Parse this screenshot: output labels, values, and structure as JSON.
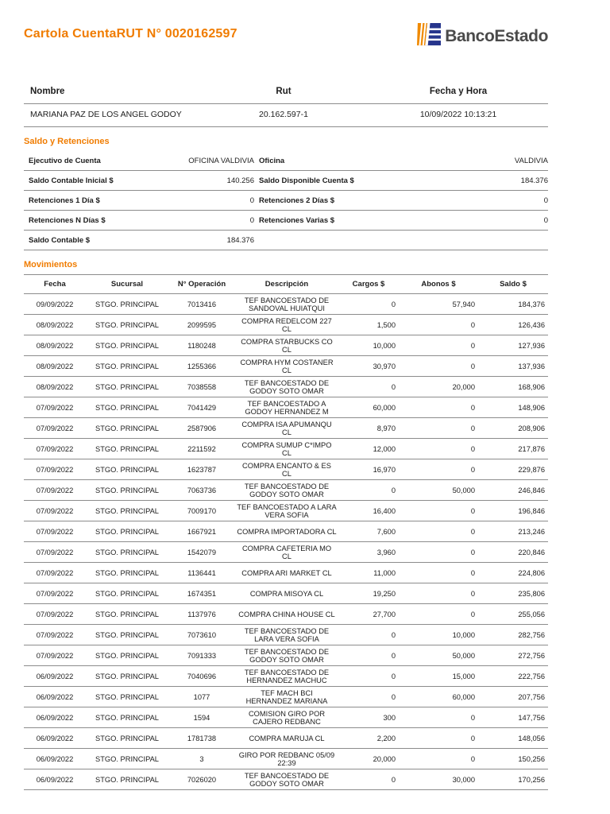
{
  "header": {
    "title": "Cartola CuentaRUT N° 0020162597",
    "brand": "BancoEstado",
    "brand_orange": "#F08A00",
    "brand_blue": "#26358C",
    "accent_orange": "#F07C00"
  },
  "account": {
    "columns": [
      "Nombre",
      "Rut",
      "Fecha y Hora"
    ],
    "nombre": "MARIANA PAZ DE LOS ANGEL GODOY",
    "rut": "20.162.597-1",
    "fecha_hora": "10/09/2022 10:13:21"
  },
  "saldo": {
    "heading": "Saldo y Retenciones",
    "rows": [
      [
        "Ejecutivo de Cuenta",
        "OFICINA VALDIVIA",
        "Oficina",
        "VALDIVIA"
      ],
      [
        "Saldo Contable Inicial $",
        "140.256",
        "Saldo Disponible Cuenta $",
        "184.376"
      ],
      [
        "Retenciones 1 Día $",
        "0",
        "Retenciones 2 Días $",
        "0"
      ],
      [
        "Retenciones N Días $",
        "0",
        "Retenciones Varias $",
        "0"
      ],
      [
        "Saldo Contable $",
        "184.376",
        "",
        ""
      ]
    ]
  },
  "movimientos": {
    "heading": "Movimientos",
    "columns": [
      "Fecha",
      "Sucursal",
      "N° Operación",
      "Descripción",
      "Cargos $",
      "Abonos $",
      "Saldo $"
    ],
    "rows": [
      [
        "09/09/2022",
        "STGO. PRINCIPAL",
        "7013416",
        "TEF BANCOESTADO DE SANDOVAL HUIATQUI",
        "0",
        "57,940",
        "184,376"
      ],
      [
        "08/09/2022",
        "STGO. PRINCIPAL",
        "2099595",
        "COMPRA REDELCOM 227 CL",
        "1,500",
        "0",
        "126,436"
      ],
      [
        "08/09/2022",
        "STGO. PRINCIPAL",
        "1180248",
        "COMPRA STARBUCKS CO CL",
        "10,000",
        "0",
        "127,936"
      ],
      [
        "08/09/2022",
        "STGO. PRINCIPAL",
        "1255366",
        "COMPRA HYM COSTANER CL",
        "30,970",
        "0",
        "137,936"
      ],
      [
        "08/09/2022",
        "STGO. PRINCIPAL",
        "7038558",
        "TEF BANCOESTADO DE GODOY SOTO OMAR",
        "0",
        "20,000",
        "168,906"
      ],
      [
        "07/09/2022",
        "STGO. PRINCIPAL",
        "7041429",
        "TEF BANCOESTADO A GODOY HERNANDEZ M",
        "60,000",
        "0",
        "148,906"
      ],
      [
        "07/09/2022",
        "STGO. PRINCIPAL",
        "2587906",
        "COMPRA ISA APUMANQU CL",
        "8,970",
        "0",
        "208,906"
      ],
      [
        "07/09/2022",
        "STGO. PRINCIPAL",
        "2211592",
        "COMPRA SUMUP C*IMPO CL",
        "12,000",
        "0",
        "217,876"
      ],
      [
        "07/09/2022",
        "STGO. PRINCIPAL",
        "1623787",
        "COMPRA ENCANTO & ES CL",
        "16,970",
        "0",
        "229,876"
      ],
      [
        "07/09/2022",
        "STGO. PRINCIPAL",
        "7063736",
        "TEF BANCOESTADO DE GODOY SOTO OMAR",
        "0",
        "50,000",
        "246,846"
      ],
      [
        "07/09/2022",
        "STGO. PRINCIPAL",
        "7009170",
        "TEF BANCOESTADO A LARA VERA SOFIA",
        "16,400",
        "0",
        "196,846"
      ],
      [
        "07/09/2022",
        "STGO. PRINCIPAL",
        "1667921",
        "COMPRA IMPORTADORA CL",
        "7,600",
        "0",
        "213,246"
      ],
      [
        "07/09/2022",
        "STGO. PRINCIPAL",
        "1542079",
        "COMPRA CAFETERIA MO CL",
        "3,960",
        "0",
        "220,846"
      ],
      [
        "07/09/2022",
        "STGO. PRINCIPAL",
        "1136441",
        "COMPRA ARI MARKET CL",
        "11,000",
        "0",
        "224,806"
      ],
      [
        "07/09/2022",
        "STGO. PRINCIPAL",
        "1674351",
        "COMPRA MISOYA CL",
        "19,250",
        "0",
        "235,806"
      ],
      [
        "07/09/2022",
        "STGO. PRINCIPAL",
        "1137976",
        "COMPRA CHINA HOUSE CL",
        "27,700",
        "0",
        "255,056"
      ],
      [
        "07/09/2022",
        "STGO. PRINCIPAL",
        "7073610",
        "TEF BANCOESTADO DE LARA VERA SOFIA",
        "0",
        "10,000",
        "282,756"
      ],
      [
        "07/09/2022",
        "STGO. PRINCIPAL",
        "7091333",
        "TEF BANCOESTADO DE GODOY SOTO OMAR",
        "0",
        "50,000",
        "272,756"
      ],
      [
        "06/09/2022",
        "STGO. PRINCIPAL",
        "7040696",
        "TEF BANCOESTADO DE HERNANDEZ MACHUC",
        "0",
        "15,000",
        "222,756"
      ],
      [
        "06/09/2022",
        "STGO. PRINCIPAL",
        "1077",
        "TEF MACH BCI HERNANDEZ MARIANA",
        "0",
        "60,000",
        "207,756"
      ],
      [
        "06/09/2022",
        "STGO. PRINCIPAL",
        "1594",
        "COMISION GIRO POR CAJERO REDBANC",
        "300",
        "0",
        "147,756"
      ],
      [
        "06/09/2022",
        "STGO. PRINCIPAL",
        "1781738",
        "COMPRA MARUJA CL",
        "2,200",
        "0",
        "148,056"
      ],
      [
        "06/09/2022",
        "STGO. PRINCIPAL",
        "3",
        "GIRO POR REDBANC 05/09 22:39",
        "20,000",
        "0",
        "150,256"
      ],
      [
        "06/09/2022",
        "STGO. PRINCIPAL",
        "7026020",
        "TEF BANCOESTADO DE GODOY SOTO OMAR",
        "0",
        "30,000",
        "170,256"
      ]
    ]
  }
}
